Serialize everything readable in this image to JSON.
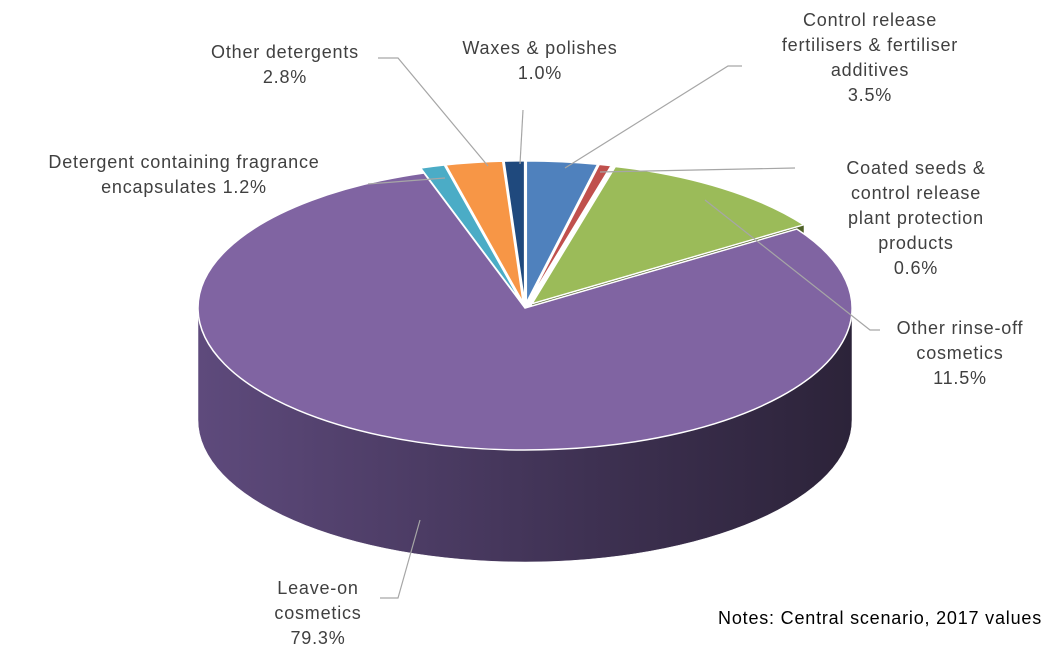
{
  "chart_data": {
    "type": "pie",
    "categories": [
      "Control release fertilisers & fertiliser additives",
      "Coated seeds & control release plant protection products",
      "Other rinse-off cosmetics",
      "Leave-on cosmetics",
      "Detergent containing fragrance encapsulates",
      "Other detergents",
      "Waxes & polishes"
    ],
    "values": [
      3.5,
      0.6,
      11.5,
      79.3,
      1.2,
      2.8,
      1.0
    ],
    "value_labels": [
      "3.5%",
      "0.6%",
      "11.5%",
      "79.3%",
      "1.2%",
      "2.8%",
      "1.0%"
    ],
    "colors": [
      "#4f81bd",
      "#c0504d",
      "#9bbb59",
      "#8064a2",
      "#4bacc6",
      "#f79646",
      "#1f497d"
    ],
    "note": "Notes: Central scenario, 2017 values"
  }
}
